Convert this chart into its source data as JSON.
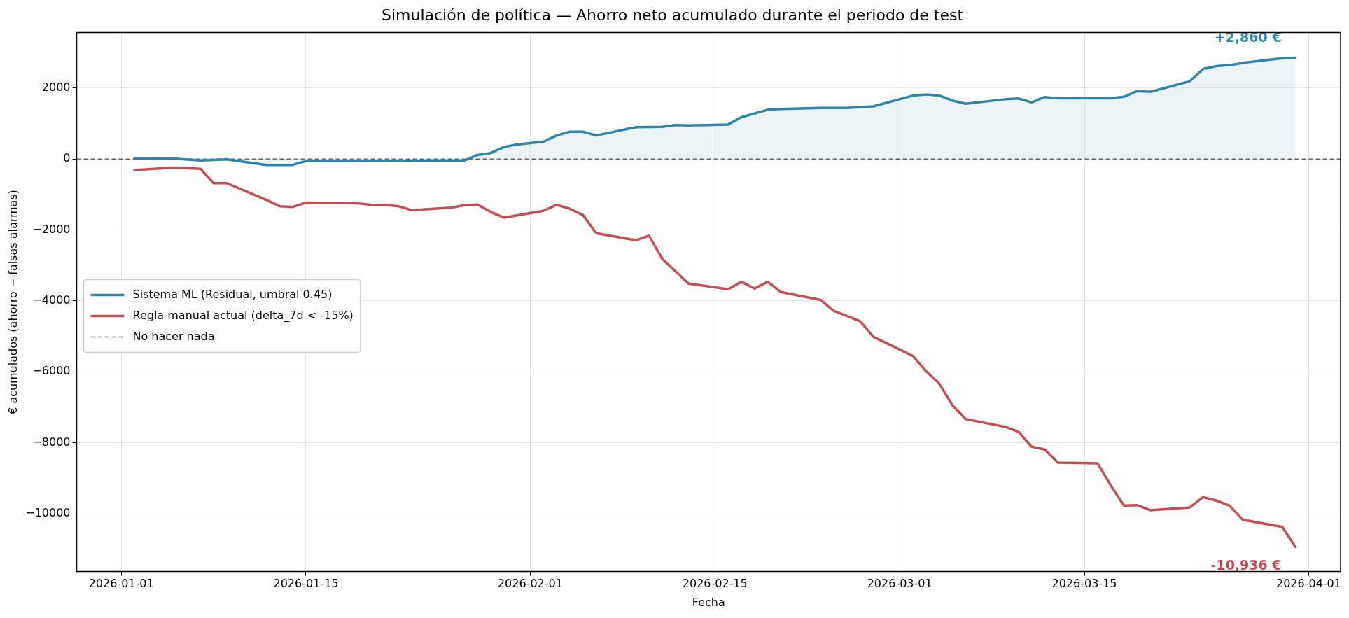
{
  "chart_data": {
    "type": "line",
    "title": "Simulación de política — Ahorro neto acumulado durante el periodo de test",
    "xlabel": "Fecha",
    "ylabel": "€ acumulados (ahorro − falsas alarmas)",
    "xlim": [
      "2025-12-28T15:00",
      "2026-04-03T10:00"
    ],
    "xticks": [
      "2026-01-01",
      "2026-01-15",
      "2026-02-01",
      "2026-02-15",
      "2026-03-01",
      "2026-03-15",
      "2026-04-01"
    ],
    "ylim": [
      -11630,
      3570
    ],
    "yticks": [
      {
        "value": -10000,
        "label": "−10000"
      },
      {
        "value": -8000,
        "label": "−8000"
      },
      {
        "value": -6000,
        "label": "−6000"
      },
      {
        "value": -4000,
        "label": "−4000"
      },
      {
        "value": -2000,
        "label": "−2000"
      },
      0,
      2000
    ],
    "grid": true,
    "legend": "center left",
    "marker": "none",
    "line_style": "solid",
    "series": [
      {
        "name": "Sistema ML (Residual, umbral 0.45)",
        "type": "area",
        "color": "#2e86ab",
        "x": [
          "2026-01-02",
          "2026-01-05",
          "2026-01-07",
          "2026-01-09",
          "2026-01-12",
          "2026-01-14",
          "2026-01-15",
          "2026-01-21",
          "2026-01-27",
          "2026-01-28",
          "2026-01-29",
          "2026-01-30",
          "2026-01-31",
          "2026-02-02",
          "2026-02-03",
          "2026-02-04",
          "2026-02-05",
          "2026-02-06",
          "2026-02-09",
          "2026-02-11",
          "2026-02-12",
          "2026-02-13",
          "2026-02-16",
          "2026-02-17",
          "2026-02-19",
          "2026-02-20",
          "2026-02-23",
          "2026-02-25",
          "2026-02-27",
          "2026-03-02",
          "2026-03-03",
          "2026-03-04",
          "2026-03-05",
          "2026-03-06",
          "2026-03-09",
          "2026-03-10",
          "2026-03-11",
          "2026-03-12",
          "2026-03-13",
          "2026-03-17",
          "2026-03-18",
          "2026-03-19",
          "2026-03-20",
          "2026-03-23",
          "2026-03-24",
          "2026-03-25",
          "2026-03-26",
          "2026-03-27",
          "2026-03-30",
          "2026-03-31"
        ],
        "values": [
          15,
          15,
          -40,
          -10,
          -165,
          -165,
          -55,
          -55,
          -40,
          115,
          170,
          340,
          410,
          490,
          665,
          770,
          770,
          665,
          900,
          910,
          960,
          950,
          975,
          1180,
          1390,
          1410,
          1440,
          1440,
          1485,
          1790,
          1820,
          1790,
          1650,
          1560,
          1686,
          1707,
          1596,
          1749,
          1714,
          1714,
          1756,
          1916,
          1895,
          2195,
          2543,
          2620,
          2648,
          2711,
          2843,
          2860
        ]
      },
      {
        "name": "Regla manual actual (delta_7d < -15%)",
        "type": "line",
        "color": "#c44e52",
        "x": [
          "2026-01-02",
          "2026-01-05",
          "2026-01-07",
          "2026-01-08",
          "2026-01-09",
          "2026-01-12",
          "2026-01-13",
          "2026-01-14",
          "2026-01-15",
          "2026-01-19",
          "2026-01-20",
          "2026-01-21",
          "2026-01-22",
          "2026-01-23",
          "2026-01-26",
          "2026-01-27",
          "2026-01-28",
          "2026-01-29",
          "2026-01-30",
          "2026-02-02",
          "2026-02-03",
          "2026-02-04",
          "2026-02-05",
          "2026-02-06",
          "2026-02-09",
          "2026-02-10",
          "2026-02-11",
          "2026-02-13",
          "2026-02-16",
          "2026-02-17",
          "2026-02-18",
          "2026-02-19",
          "2026-02-20",
          "2026-02-23",
          "2026-02-24",
          "2026-02-26",
          "2026-02-27",
          "2026-03-02",
          "2026-03-03",
          "2026-03-04",
          "2026-03-05",
          "2026-03-06",
          "2026-03-09",
          "2026-03-10",
          "2026-03-11",
          "2026-03-12",
          "2026-03-13",
          "2026-03-16",
          "2026-03-17",
          "2026-03-18",
          "2026-03-19",
          "2026-03-20",
          "2026-03-23",
          "2026-03-24",
          "2026-03-25",
          "2026-03-26",
          "2026-03-27",
          "2026-03-30",
          "2026-03-31"
        ],
        "values": [
          -310,
          -240,
          -275,
          -680,
          -680,
          -1150,
          -1330,
          -1350,
          -1230,
          -1250,
          -1290,
          -1290,
          -1330,
          -1440,
          -1370,
          -1300,
          -1280,
          -1490,
          -1650,
          -1460,
          -1290,
          -1400,
          -1580,
          -2090,
          -2290,
          -2160,
          -2810,
          -3510,
          -3670,
          -3460,
          -3650,
          -3460,
          -3750,
          -3970,
          -4280,
          -4570,
          -5010,
          -5550,
          -5980,
          -6330,
          -6940,
          -7330,
          -7550,
          -7690,
          -8110,
          -8190,
          -8560,
          -8580,
          -9200,
          -9770,
          -9760,
          -9900,
          -9820,
          -9530,
          -9630,
          -9770,
          -10170,
          -10370,
          -10936
        ]
      }
    ],
    "ref_lines": [
      {
        "axis": "y",
        "value": 0,
        "label": "No hacer nada",
        "color": "#666666",
        "line_style": "dashed"
      }
    ],
    "annotations": [
      {
        "text": "+2,860 €",
        "x": "2026-03-31",
        "y": 2860
      },
      {
        "text": "-10,936 €",
        "x": "2026-03-31",
        "y": -10936
      }
    ]
  }
}
